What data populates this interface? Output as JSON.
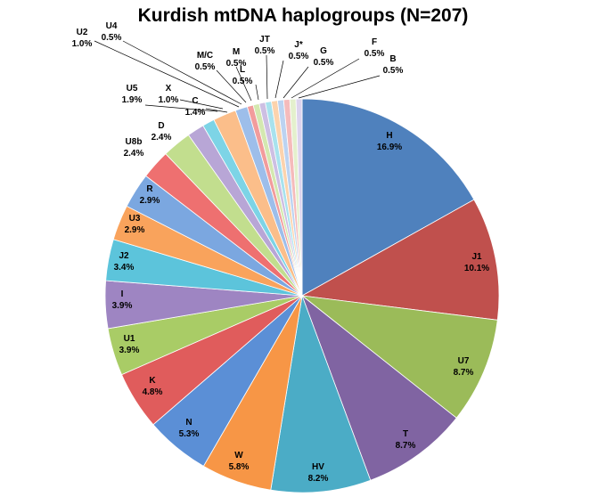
{
  "chart_data": {
    "type": "pie",
    "title": "Kurdish mtDNA haplogroups (N=207)",
    "slices": [
      {
        "label": "H",
        "value": 16.9,
        "value_label": "16.9%",
        "color": "#4F81BD"
      },
      {
        "label": "J1",
        "value": 10.1,
        "value_label": "10.1%",
        "color": "#C0504D"
      },
      {
        "label": "U7",
        "value": 8.7,
        "value_label": "8.7%",
        "color": "#9BBB59"
      },
      {
        "label": "T",
        "value": 8.7,
        "value_label": "8.7%",
        "color": "#8064A2"
      },
      {
        "label": "HV",
        "value": 8.2,
        "value_label": "8.2%",
        "color": "#4BACC6"
      },
      {
        "label": "W",
        "value": 5.8,
        "value_label": "5.8%",
        "color": "#F79646"
      },
      {
        "label": "N",
        "value": 5.3,
        "value_label": "5.3%",
        "color": "#5B8FD6"
      },
      {
        "label": "K",
        "value": 4.8,
        "value_label": "4.8%",
        "color": "#E05C5C"
      },
      {
        "label": "U1",
        "value": 3.9,
        "value_label": "3.9%",
        "color": "#A9CC66"
      },
      {
        "label": "I",
        "value": 3.9,
        "value_label": "3.9%",
        "color": "#9E85C2"
      },
      {
        "label": "J2",
        "value": 3.4,
        "value_label": "3.4%",
        "color": "#5CC4DB"
      },
      {
        "label": "U3",
        "value": 2.9,
        "value_label": "2.9%",
        "color": "#F9A35C"
      },
      {
        "label": "R",
        "value": 2.9,
        "value_label": "2.9%",
        "color": "#7BA7E0"
      },
      {
        "label": "U8b",
        "value": 2.4,
        "value_label": "2.4%",
        "color": "#EE7070"
      },
      {
        "label": "D",
        "value": 2.4,
        "value_label": "2.4%",
        "color": "#C2DE8E"
      },
      {
        "label": "C",
        "value": 1.4,
        "value_label": "1.4%",
        "color": "#B8A6D6"
      },
      {
        "label": "X",
        "value": 1.0,
        "value_label": "1.0%",
        "color": "#7DD4E6"
      },
      {
        "label": "U5",
        "value": 1.9,
        "value_label": "1.9%",
        "color": "#FBBE8A"
      },
      {
        "label": "U2",
        "value": 1.0,
        "value_label": "1.0%",
        "color": "#9DBEEA"
      },
      {
        "label": "U4",
        "value": 0.5,
        "value_label": "0.5%",
        "color": "#F29C9C"
      },
      {
        "label": "M/C",
        "value": 0.5,
        "value_label": "0.5%",
        "color": "#D4E8B0"
      },
      {
        "label": "M",
        "value": 0.5,
        "value_label": "0.5%",
        "color": "#CDBFE3"
      },
      {
        "label": "L",
        "value": 0.5,
        "value_label": "0.5%",
        "color": "#A8E2EE"
      },
      {
        "label": "JT",
        "value": 0.5,
        "value_label": "0.5%",
        "color": "#FCD3AD"
      },
      {
        "label": "J*",
        "value": 0.5,
        "value_label": "0.5%",
        "color": "#BCD3F1"
      },
      {
        "label": "G",
        "value": 0.5,
        "value_label": "0.5%",
        "color": "#F5BBBB"
      },
      {
        "label": "F",
        "value": 0.5,
        "value_label": "0.5%",
        "color": "#E4F0CD"
      },
      {
        "label": "B",
        "value": 0.5,
        "value_label": "0.5%",
        "color": "#DDD4EE"
      }
    ]
  }
}
